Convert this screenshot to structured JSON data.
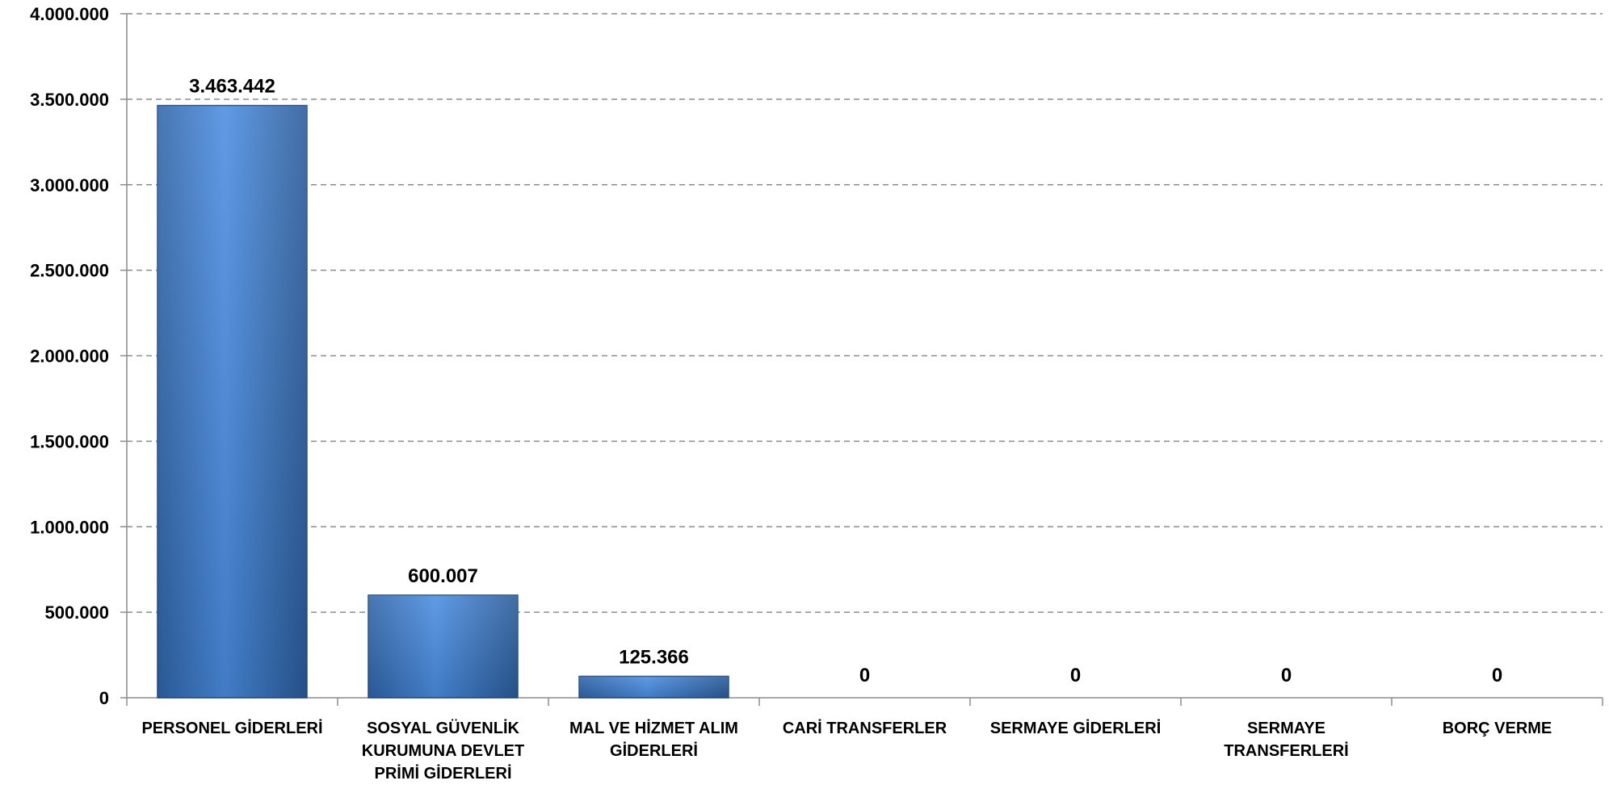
{
  "chart_data": {
    "type": "bar",
    "categories": [
      [
        "PERSONEL GİDERLERİ"
      ],
      [
        "SOSYAL GÜVENLİK",
        "KURUMUNA DEVLET",
        "PRİMİ GİDERLERİ"
      ],
      [
        "MAL VE HİZMET ALIM",
        "GİDERLERİ"
      ],
      [
        "CARİ TRANSFERLER"
      ],
      [
        "SERMAYE GİDERLERİ"
      ],
      [
        "SERMAYE",
        "TRANSFERLERİ"
      ],
      [
        "BORÇ VERME"
      ]
    ],
    "values": [
      3463442,
      600007,
      125366,
      0,
      0,
      0,
      0
    ],
    "value_labels": [
      "3.463.442",
      "600.007",
      "125.366",
      "0",
      "0",
      "0",
      "0"
    ],
    "ylim": [
      0,
      4000000
    ],
    "yticks": [
      0,
      500000,
      1000000,
      1500000,
      2000000,
      2500000,
      3000000,
      3500000,
      4000000
    ],
    "ytick_labels": [
      "0",
      "500.000",
      "1.000.000",
      "1.500.000",
      "2.000.000",
      "2.500.000",
      "3.000.000",
      "3.500.000",
      "4.000.000"
    ],
    "grid": true,
    "bar_color": "#3a7bd5",
    "title": "",
    "xlabel": "",
    "ylabel": ""
  }
}
